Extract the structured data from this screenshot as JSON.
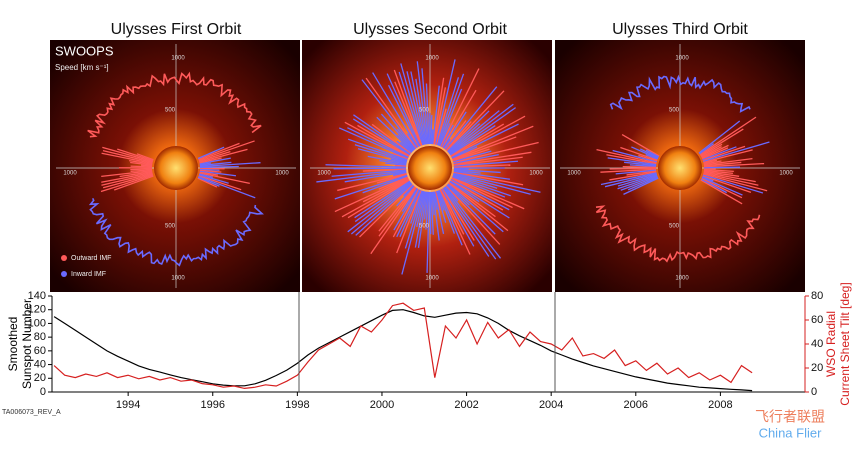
{
  "panels": [
    {
      "title": "Ulysses First Orbit"
    },
    {
      "title": "Ulysses Second Orbit"
    },
    {
      "title": "Ulysses Third Orbit"
    }
  ],
  "radial_ticks": [
    500,
    1000
  ],
  "legend": {
    "instrument": "SWOOPS",
    "speed_label": "Speed [km s⁻¹]",
    "outward": "Outward IMF",
    "inward": "Inward IMF"
  },
  "figure_id": "TA006073_REV_A",
  "watermark": {
    "cn": "飞行者联盟",
    "en": "China Flier"
  },
  "chart_data": {
    "type": "line",
    "ylabel": [
      "Smoothed",
      "Sunspot Number"
    ],
    "y2label": [
      "WSO Radial",
      "Current Sheet Tilt [deg]"
    ],
    "x": [
      1992.25,
      1992.5,
      1992.75,
      1993,
      1993.25,
      1993.5,
      1993.75,
      1994,
      1994.25,
      1994.5,
      1994.75,
      1995,
      1995.25,
      1995.5,
      1995.75,
      1996,
      1996.25,
      1996.5,
      1996.75,
      1997,
      1997.25,
      1997.5,
      1997.75,
      1998,
      1998.25,
      1998.5,
      1998.75,
      1999,
      1999.25,
      1999.5,
      1999.75,
      2000,
      2000.25,
      2000.5,
      2000.75,
      2001,
      2001.25,
      2001.5,
      2001.75,
      2002,
      2002.25,
      2002.5,
      2002.75,
      2003,
      2003.25,
      2003.5,
      2003.75,
      2004,
      2004.25,
      2004.5,
      2004.75,
      2005,
      2005.25,
      2005.5,
      2005.75,
      2006,
      2006.25,
      2006.5,
      2006.75,
      2007,
      2007.25,
      2007.5,
      2007.75,
      2008,
      2008.25,
      2008.5,
      2008.75
    ],
    "series": [
      {
        "color": "#000000",
        "values": [
          110,
          100,
          90,
          80,
          70,
          60,
          52,
          45,
          38,
          33,
          29,
          25,
          21,
          18,
          15,
          12,
          10,
          9,
          9,
          12,
          17,
          24,
          32,
          42,
          54,
          64,
          72,
          80,
          88,
          96,
          104,
          112,
          119,
          120,
          116,
          111,
          109,
          112,
          115,
          116,
          114,
          108,
          100,
          90,
          82,
          75,
          68,
          60,
          54,
          48,
          43,
          38,
          34,
          30,
          26,
          22,
          19,
          16,
          13,
          11,
          9,
          7,
          6,
          5,
          4,
          3,
          2
        ]
      },
      {
        "color": "#d62020",
        "axis": "y2",
        "values": [
          22,
          14,
          12,
          15,
          13,
          16,
          12,
          14,
          11,
          13,
          10,
          12,
          9,
          10,
          7,
          6,
          4,
          5,
          3,
          4,
          6,
          5,
          9,
          14,
          25,
          35,
          40,
          45,
          38,
          55,
          50,
          60,
          72,
          74,
          68,
          70,
          12,
          55,
          45,
          60,
          40,
          58,
          45,
          52,
          38,
          50,
          42,
          40,
          35,
          45,
          30,
          32,
          28,
          35,
          22,
          26,
          18,
          24,
          15,
          20,
          12,
          16,
          10,
          14,
          8,
          22,
          16
        ]
      }
    ],
    "xlim": [
      1992.2,
      2010
    ],
    "xticks": [
      1994,
      1996,
      1998,
      2000,
      2002,
      2004,
      2006,
      2008
    ],
    "ylim": [
      0,
      140
    ],
    "yticks": [
      0,
      20,
      40,
      60,
      80,
      100,
      120,
      140
    ],
    "y2lim": [
      0,
      80
    ],
    "y2ticks": [
      0,
      20,
      40,
      60,
      80
    ]
  }
}
